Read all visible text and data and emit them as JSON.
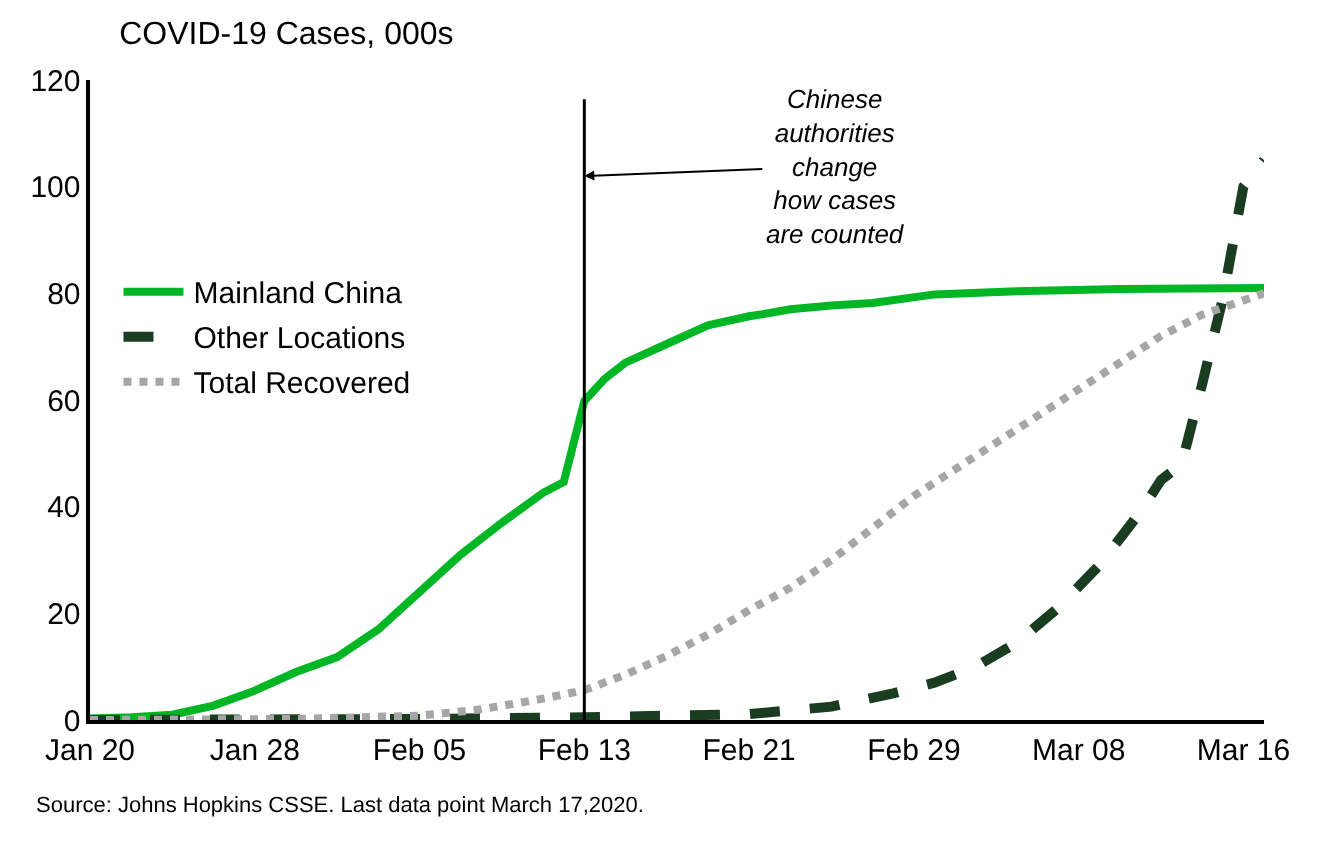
{
  "chart_data": {
    "type": "line",
    "title": "COVID-19 Cases, 000s",
    "ylim": [
      0,
      120
    ],
    "yticks": [
      0,
      20,
      40,
      60,
      80,
      100,
      120
    ],
    "xlim": [
      "2020-01-20",
      "2020-03-17"
    ],
    "xticks": [
      {
        "value": "2020-01-20",
        "label": "Jan 20"
      },
      {
        "value": "2020-01-28",
        "label": "Jan 28"
      },
      {
        "value": "2020-02-05",
        "label": "Feb 05"
      },
      {
        "value": "2020-02-13",
        "label": "Feb 13"
      },
      {
        "value": "2020-02-21",
        "label": "Feb 21"
      },
      {
        "value": "2020-02-29",
        "label": "Feb 29"
      },
      {
        "value": "2020-03-08",
        "label": "Mar 08"
      },
      {
        "value": "2020-03-16",
        "label": "Mar 16"
      }
    ],
    "legend": "left",
    "marker": "none",
    "series": [
      {
        "name": "Mainland China",
        "color": "#00b624",
        "line_style": "solid",
        "x": [
          "2020-01-20",
          "2020-01-22",
          "2020-01-24",
          "2020-01-26",
          "2020-01-28",
          "2020-01-30",
          "2020-02-01",
          "2020-02-03",
          "2020-02-05",
          "2020-02-07",
          "2020-02-09",
          "2020-02-11",
          "2020-02-12",
          "2020-02-13",
          "2020-02-14",
          "2020-02-15",
          "2020-02-17",
          "2020-02-19",
          "2020-02-21",
          "2020-02-22",
          "2020-02-23",
          "2020-02-25",
          "2020-02-27",
          "2020-03-01",
          "2020-03-05",
          "2020-03-10",
          "2020-03-17"
        ],
        "values": [
          0.3,
          0.5,
          1,
          2.7,
          5.5,
          9,
          11.8,
          17,
          24,
          31,
          37,
          42.6,
          44.6,
          59.8,
          64,
          67,
          70.5,
          74,
          75.7,
          76.3,
          77,
          77.7,
          78.2,
          79.8,
          80.4,
          80.8,
          81
        ]
      },
      {
        "name": "Other Locations",
        "color": "#1a3d22",
        "line_style": "dashed",
        "x": [
          "2020-01-20",
          "2020-02-05",
          "2020-02-13",
          "2020-02-21",
          "2020-02-25",
          "2020-02-28",
          "2020-03-01",
          "2020-03-03",
          "2020-03-05",
          "2020-03-07",
          "2020-03-09",
          "2020-03-11",
          "2020-03-12",
          "2020-03-13",
          "2020-03-14",
          "2020-03-15",
          "2020-03-16",
          "2020-03-17"
        ],
        "values": [
          0,
          0.2,
          0.5,
          1.1,
          2.5,
          5,
          7,
          10,
          14.5,
          21,
          29,
          39,
          45,
          48,
          63,
          79,
          100,
          105
        ]
      },
      {
        "name": "Total Recovered",
        "color": "#a6a6a6",
        "line_style": "dotted",
        "x": [
          "2020-01-20",
          "2020-01-30",
          "2020-02-05",
          "2020-02-08",
          "2020-02-11",
          "2020-02-13",
          "2020-02-15",
          "2020-02-17",
          "2020-02-19",
          "2020-02-21",
          "2020-02-23",
          "2020-02-25",
          "2020-02-27",
          "2020-02-29",
          "2020-03-02",
          "2020-03-04",
          "2020-03-06",
          "2020-03-08",
          "2020-03-10",
          "2020-03-12",
          "2020-03-14",
          "2020-03-17"
        ],
        "values": [
          0,
          0.2,
          0.8,
          2,
          4,
          5.6,
          8.5,
          12,
          16,
          20.6,
          24.8,
          30,
          36,
          42,
          47,
          52,
          57,
          62,
          67,
          72,
          76,
          80
        ]
      }
    ],
    "ref_lines": [
      {
        "axis": "x",
        "value": "2020-02-13",
        "color": "#000000"
      }
    ],
    "annotations": [
      {
        "text": "Chinese\nauthorities\nchange\nhow cases\nare counted",
        "x": "2020-02-13",
        "y": 102
      },
      "Source: Johns Hopkins CSSE. Last data point March 17,2020."
    ]
  }
}
